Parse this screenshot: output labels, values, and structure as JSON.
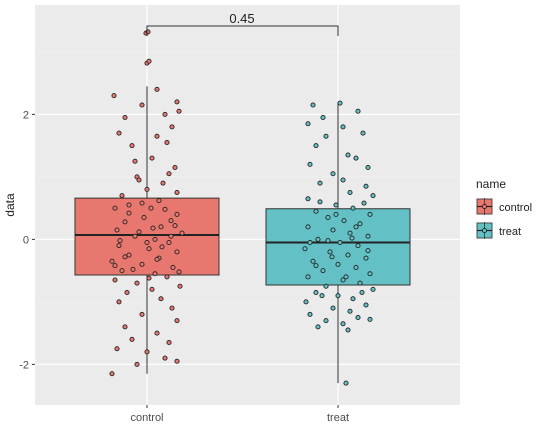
{
  "chart_data": {
    "type": "box",
    "xlabel": "",
    "ylabel": "data",
    "categories": [
      "control",
      "treat"
    ],
    "y_ticks": [
      -2,
      0,
      2
    ],
    "ylim": [
      -2.65,
      3.75
    ],
    "grid": true,
    "legend": {
      "title": "name",
      "position": "right",
      "entries": [
        "control",
        "treat"
      ]
    },
    "annotation": {
      "text": "0.45",
      "between": [
        "control",
        "treat"
      ]
    },
    "boxes": [
      {
        "name": "control",
        "color": "#E8786F",
        "q1": -0.57,
        "median": 0.07,
        "q3": 0.66,
        "whisker_low": -2.15,
        "whisker_high": 2.45,
        "points": [
          [
            -0.33,
            2.3
          ],
          [
            0.1,
            2.4
          ],
          [
            0.3,
            2.2
          ],
          [
            0.32,
            2.05
          ],
          [
            -0.05,
            2.15
          ],
          [
            0.18,
            2.0
          ],
          [
            -0.22,
            1.95
          ],
          [
            0.2,
            1.55
          ],
          [
            -0.28,
            1.7
          ],
          [
            0.25,
            1.8
          ],
          [
            -0.15,
            1.5
          ],
          [
            0.1,
            1.65
          ],
          [
            0.05,
            1.3
          ],
          [
            -0.12,
            1.25
          ],
          [
            0.28,
            1.15
          ],
          [
            0.22,
            1.05
          ],
          [
            -0.1,
            1.0
          ],
          [
            0.16,
            0.9
          ],
          [
            0.3,
            0.75
          ],
          [
            -0.25,
            0.7
          ],
          [
            -0.08,
            0.95
          ],
          [
            0.0,
            0.8
          ],
          [
            0.12,
            0.62
          ],
          [
            -0.18,
            0.55
          ],
          [
            -0.32,
            0.5
          ],
          [
            0.3,
            0.4
          ],
          [
            0.04,
            0.5
          ],
          [
            -0.03,
            0.35
          ],
          [
            0.24,
            0.3
          ],
          [
            -0.22,
            0.28
          ],
          [
            0.14,
            0.2
          ],
          [
            0.35,
            0.1
          ],
          [
            -0.3,
            0.15
          ],
          [
            -0.12,
            0.05
          ],
          [
            0.08,
            0.0
          ],
          [
            0.22,
            -0.05
          ],
          [
            -0.28,
            -0.1
          ],
          [
            0.02,
            -0.15
          ],
          [
            0.3,
            -0.2
          ],
          [
            -0.18,
            -0.25
          ],
          [
            0.12,
            -0.3
          ],
          [
            -0.35,
            -0.35
          ],
          [
            -0.05,
            -0.4
          ],
          [
            0.26,
            -0.45
          ],
          [
            -0.25,
            -0.5
          ],
          [
            0.08,
            -0.55
          ],
          [
            0.2,
            -0.6
          ],
          [
            -0.32,
            -0.65
          ],
          [
            -0.1,
            -0.7
          ],
          [
            0.33,
            -0.75
          ],
          [
            0.05,
            -0.8
          ],
          [
            -0.2,
            -0.85
          ],
          [
            0.14,
            -0.95
          ],
          [
            -0.28,
            -1.0
          ],
          [
            0.25,
            -1.1
          ],
          [
            -0.05,
            -1.2
          ],
          [
            0.3,
            -1.3
          ],
          [
            -0.22,
            -1.4
          ],
          [
            0.1,
            -1.5
          ],
          [
            -0.15,
            -1.6
          ],
          [
            0.22,
            -1.65
          ],
          [
            -0.3,
            -1.75
          ],
          [
            0.0,
            -1.8
          ],
          [
            0.18,
            -1.9
          ],
          [
            -0.1,
            -2.0
          ],
          [
            0.3,
            -1.95
          ],
          [
            -0.35,
            -2.15
          ],
          [
            -0.18,
            0.42
          ],
          [
            0.18,
            0.48
          ],
          [
            -0.05,
            0.58
          ],
          [
            0.06,
            0.18
          ],
          [
            -0.27,
            -0.02
          ],
          [
            0.28,
            0.22
          ],
          [
            -0.14,
            -0.48
          ],
          [
            0.02,
            -0.62
          ],
          [
            0.1,
            -0.32
          ],
          [
            -0.08,
            0.12
          ],
          [
            0.15,
            -0.12
          ],
          [
            -0.22,
            -0.28
          ],
          [
            0.0,
            -0.05
          ],
          [
            0.24,
            0.05
          ],
          [
            -0.32,
            -0.42
          ],
          [
            0.32,
            -0.52
          ],
          [
            0.0,
            2.82
          ],
          [
            0.02,
            2.85
          ],
          [
            -0.01,
            3.3
          ],
          [
            0.01,
            3.32
          ]
        ]
      },
      {
        "name": "treat",
        "color": "#63C1C5",
        "q1": -0.73,
        "median": -0.05,
        "q3": 0.49,
        "whisker_low": -2.3,
        "whisker_high": 2.2,
        "points": [
          [
            -0.25,
            2.15
          ],
          [
            0.02,
            2.18
          ],
          [
            0.2,
            2.05
          ],
          [
            -0.15,
            1.95
          ],
          [
            -0.3,
            1.85
          ],
          [
            0.05,
            1.8
          ],
          [
            -0.12,
            1.65
          ],
          [
            0.25,
            1.7
          ],
          [
            -0.22,
            1.5
          ],
          [
            0.1,
            1.35
          ],
          [
            0.18,
            1.3
          ],
          [
            0.3,
            1.15
          ],
          [
            -0.28,
            1.2
          ],
          [
            -0.05,
            1.05
          ],
          [
            0.05,
            0.95
          ],
          [
            -0.18,
            0.9
          ],
          [
            0.28,
            0.85
          ],
          [
            0.12,
            0.75
          ],
          [
            0.35,
            0.7
          ],
          [
            -0.3,
            0.65
          ],
          [
            -0.02,
            0.55
          ],
          [
            0.15,
            0.5
          ],
          [
            -0.22,
            0.45
          ],
          [
            0.32,
            0.4
          ],
          [
            -0.1,
            0.35
          ],
          [
            0.06,
            0.3
          ],
          [
            0.22,
            0.25
          ],
          [
            -0.3,
            0.2
          ],
          [
            -0.05,
            0.15
          ],
          [
            0.12,
            0.1
          ],
          [
            0.3,
            0.05
          ],
          [
            -0.2,
            0.0
          ],
          [
            0.02,
            -0.05
          ],
          [
            0.2,
            -0.1
          ],
          [
            -0.33,
            -0.15
          ],
          [
            -0.08,
            -0.2
          ],
          [
            0.1,
            -0.25
          ],
          [
            0.28,
            -0.3
          ],
          [
            -0.25,
            -0.35
          ],
          [
            0.0,
            -0.4
          ],
          [
            0.18,
            -0.45
          ],
          [
            -0.15,
            -0.5
          ],
          [
            0.32,
            -0.55
          ],
          [
            -0.3,
            -0.6
          ],
          [
            0.05,
            -0.65
          ],
          [
            0.22,
            -0.7
          ],
          [
            -0.12,
            -0.75
          ],
          [
            0.35,
            -0.8
          ],
          [
            -0.22,
            -0.85
          ],
          [
            0.0,
            -0.9
          ],
          [
            0.15,
            -0.95
          ],
          [
            -0.32,
            -1.0
          ],
          [
            0.28,
            -1.05
          ],
          [
            -0.05,
            -1.1
          ],
          [
            0.12,
            -1.15
          ],
          [
            -0.28,
            -1.2
          ],
          [
            0.2,
            -1.25
          ],
          [
            -0.12,
            -1.3
          ],
          [
            0.05,
            -1.35
          ],
          [
            0.32,
            -1.28
          ],
          [
            -0.2,
            -1.4
          ],
          [
            0.1,
            -1.45
          ],
          [
            0.08,
            -2.3
          ],
          [
            -0.18,
            0.6
          ],
          [
            0.26,
            0.58
          ],
          [
            -0.28,
            -0.05
          ],
          [
            0.18,
            0.2
          ],
          [
            -0.1,
            -0.02
          ],
          [
            0.08,
            -0.6
          ],
          [
            -0.22,
            -0.42
          ],
          [
            0.3,
            -0.18
          ],
          [
            -0.02,
            0.4
          ],
          [
            0.14,
            0.02
          ],
          [
            -0.16,
            -0.9
          ],
          [
            0.24,
            -0.85
          ],
          [
            -0.06,
            -0.28
          ]
        ]
      }
    ]
  }
}
